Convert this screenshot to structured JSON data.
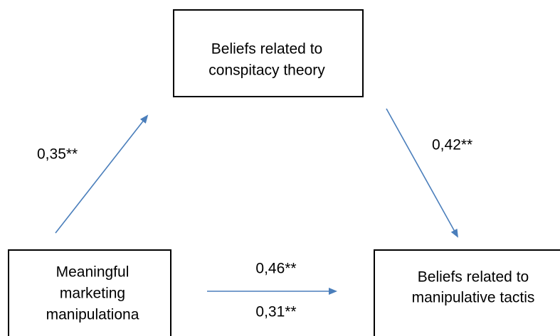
{
  "nodes": [
    {
      "lines": [
        "Beliefs related to",
        "conspitacy theory"
      ]
    },
    {
      "lines": [
        "Meaningful",
        "marketing",
        "manipulationa"
      ]
    },
    {
      "lines": [
        "Beliefs related to",
        "manipulative tactis"
      ]
    }
  ],
  "edges": [
    {
      "labels": [
        "0,35**"
      ]
    },
    {
      "labels": [
        "0,42**"
      ]
    },
    {
      "labels": [
        "0,46**",
        "0,31**"
      ]
    }
  ]
}
